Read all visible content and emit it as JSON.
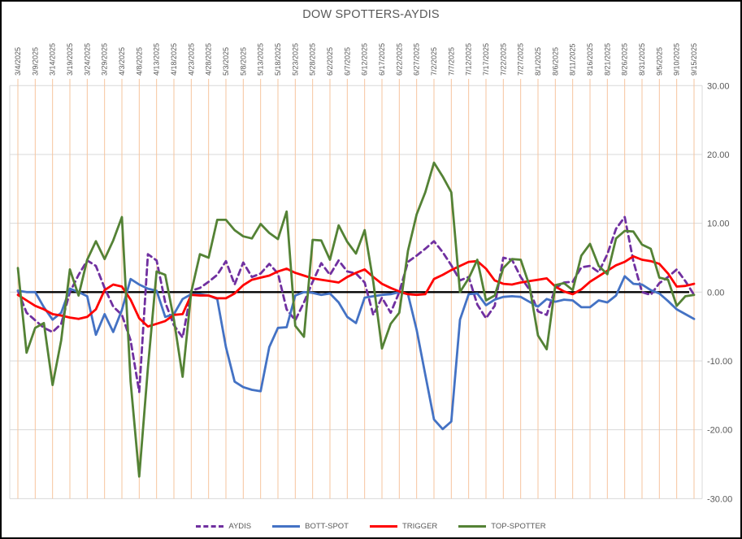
{
  "window": {
    "background": "#FFFFFF",
    "border_color": "#000000"
  },
  "chart_data": {
    "type": "line",
    "title": "DOW SPOTTERS-AYDIS",
    "title_color": "#595959",
    "x_axis": {
      "position": "top",
      "label_rotation_deg": 90,
      "tick_interval_days": 5,
      "start_date": "3/4/2025",
      "end_date": "9/15/2025",
      "labels": [
        "3/4/2025",
        "3/9/2025",
        "3/14/2025",
        "3/19/2025",
        "3/24/2025",
        "3/29/2025",
        "4/3/2025",
        "4/8/2025",
        "4/13/2025",
        "4/18/2025",
        "4/23/2025",
        "4/28/2025",
        "5/3/2025",
        "5/8/2025",
        "5/13/2025",
        "5/18/2025",
        "5/23/2025",
        "5/28/2025",
        "6/2/2025",
        "6/7/2025",
        "6/12/2025",
        "6/17/2025",
        "6/22/2025",
        "6/27/2025",
        "7/2/2025",
        "7/7/2025",
        "7/12/2025",
        "7/17/2025",
        "7/22/2025",
        "7/27/2025",
        "8/1/2025",
        "8/6/2025",
        "8/11/2025",
        "8/16/2025",
        "8/21/2025",
        "8/26/2025",
        "8/31/2025",
        "9/5/2025",
        "9/10/2025",
        "9/15/2025"
      ]
    },
    "y_axis": {
      "position": "right",
      "min": -30,
      "max": 30,
      "tick_step": 10,
      "tick_labels": [
        "30.00",
        "20.00",
        "10.00",
        "0.00",
        "-10.00",
        "-20.00",
        "-30.00"
      ]
    },
    "grid": {
      "horizontal": true,
      "vertical": true,
      "horizontal_color": "#D9D9D9",
      "vertical_color": "#F6C49E",
      "edge_color": "#D9D9D9"
    },
    "zero_line": {
      "value": 0,
      "color": "#000000"
    },
    "sample_interval_days": 2.5,
    "series": [
      {
        "name": "AYDIS",
        "color": "#7030A0",
        "dash": true,
        "values": [
          0.2,
          -3.0,
          -4.1,
          -5.2,
          -5.8,
          -4.6,
          0.0,
          2.5,
          4.6,
          3.8,
          0.6,
          -2.1,
          -3.3,
          -7.0,
          -14.5,
          5.5,
          4.6,
          -1.5,
          -4.8,
          -6.6,
          0.2,
          0.6,
          1.5,
          2.5,
          4.5,
          1.1,
          4.3,
          2.2,
          2.7,
          4.1,
          2.7,
          -2.5,
          -4.1,
          -1.5,
          1.5,
          4.2,
          2.5,
          4.6,
          3.0,
          2.7,
          1.4,
          -3.3,
          -0.8,
          -3.0,
          0.0,
          4.4,
          5.3,
          6.3,
          7.4,
          5.8,
          3.9,
          1.7,
          2.2,
          -1.8,
          -3.8,
          -2.0,
          5.0,
          4.7,
          2.2,
          0.4,
          -2.8,
          -3.3,
          0.6,
          1.4,
          1.5,
          3.6,
          3.8,
          2.9,
          5.5,
          9.2,
          10.9,
          4.5,
          0.0,
          -0.4,
          1.3,
          2.2,
          3.3,
          1.6,
          -0.4
        ]
      },
      {
        "name": "BOTT-SPOT",
        "color": "#4472C4",
        "dash": false,
        "values": [
          0.2,
          0.0,
          0.0,
          -2.2,
          -4.0,
          -3.0,
          0.5,
          0.0,
          -0.6,
          -6.2,
          -3.2,
          -5.8,
          -2.6,
          1.9,
          1.1,
          0.5,
          0.2,
          -3.6,
          -3.2,
          -1.0,
          -0.3,
          -0.3,
          -0.5,
          -1.0,
          -8.0,
          -13.0,
          -13.8,
          -14.2,
          -14.4,
          -8.0,
          -5.2,
          -5.1,
          -0.5,
          0.0,
          -0.1,
          -0.4,
          -0.2,
          -1.5,
          -3.6,
          -4.5,
          -0.8,
          -0.6,
          -0.4,
          -0.3,
          0.0,
          -0.3,
          -5.5,
          -12.0,
          -18.5,
          -19.9,
          -18.8,
          -4.0,
          -0.3,
          -0.2,
          -1.9,
          -1.1,
          -0.7,
          -0.6,
          -0.7,
          -1.4,
          -2.1,
          -1.0,
          -1.4,
          -1.1,
          -1.2,
          -2.2,
          -2.2,
          -1.2,
          -1.5,
          -0.5,
          2.3,
          1.2,
          1.1,
          0.3,
          -0.2,
          -1.3,
          -2.5,
          -3.2,
          -3.9
        ]
      },
      {
        "name": "TRIGGER",
        "color": "#FF0000",
        "dash": false,
        "values": [
          -0.4,
          -1.2,
          -2.0,
          -2.5,
          -3.2,
          -3.4,
          -3.7,
          -3.9,
          -3.6,
          -2.5,
          0.3,
          1.1,
          0.8,
          -1.1,
          -3.8,
          -5.0,
          -4.6,
          -4.2,
          -3.3,
          -3.2,
          -0.4,
          -0.5,
          -0.5,
          -0.9,
          -0.9,
          -0.2,
          1.0,
          1.8,
          2.1,
          2.4,
          3.0,
          3.4,
          2.8,
          2.4,
          2.0,
          1.8,
          1.6,
          1.4,
          2.2,
          2.8,
          3.3,
          2.2,
          1.2,
          0.6,
          0.1,
          -0.3,
          -0.4,
          -0.3,
          1.9,
          2.5,
          3.2,
          3.8,
          4.4,
          4.5,
          3.4,
          1.7,
          1.2,
          1.1,
          1.4,
          1.6,
          1.8,
          2.0,
          0.8,
          0.1,
          -0.3,
          0.4,
          1.5,
          2.3,
          3.1,
          3.9,
          4.4,
          5.2,
          4.7,
          4.5,
          4.1,
          2.7,
          0.8,
          0.9,
          1.2
        ]
      },
      {
        "name": "TOP-SPOTTER",
        "color": "#548235",
        "dash": false,
        "values": [
          3.5,
          -8.8,
          -5.2,
          -4.5,
          -13.5,
          -7.0,
          3.3,
          -0.5,
          4.7,
          7.4,
          4.8,
          7.5,
          10.9,
          -13.0,
          -26.8,
          -11.0,
          3.0,
          2.5,
          -4.0,
          -12.3,
          0.0,
          5.5,
          5.0,
          10.5,
          10.5,
          9.0,
          8.1,
          7.8,
          9.9,
          8.6,
          7.7,
          11.7,
          -4.9,
          -6.5,
          7.6,
          7.5,
          4.7,
          9.7,
          7.3,
          5.6,
          9.0,
          1.5,
          -8.2,
          -4.6,
          -3.0,
          6.0,
          11.3,
          14.5,
          18.8,
          16.8,
          14.5,
          0.0,
          2.0,
          4.7,
          -1.2,
          -0.5,
          3.5,
          4.8,
          4.7,
          1.0,
          -6.3,
          -8.3,
          1.0,
          1.3,
          0.3,
          5.3,
          7.0,
          3.8,
          2.6,
          7.8,
          8.9,
          8.8,
          6.9,
          6.3,
          2.1,
          1.8,
          -2.0,
          -0.6,
          -0.4
        ]
      }
    ],
    "legend": {
      "position": "bottom",
      "text_color": "#595959"
    }
  }
}
